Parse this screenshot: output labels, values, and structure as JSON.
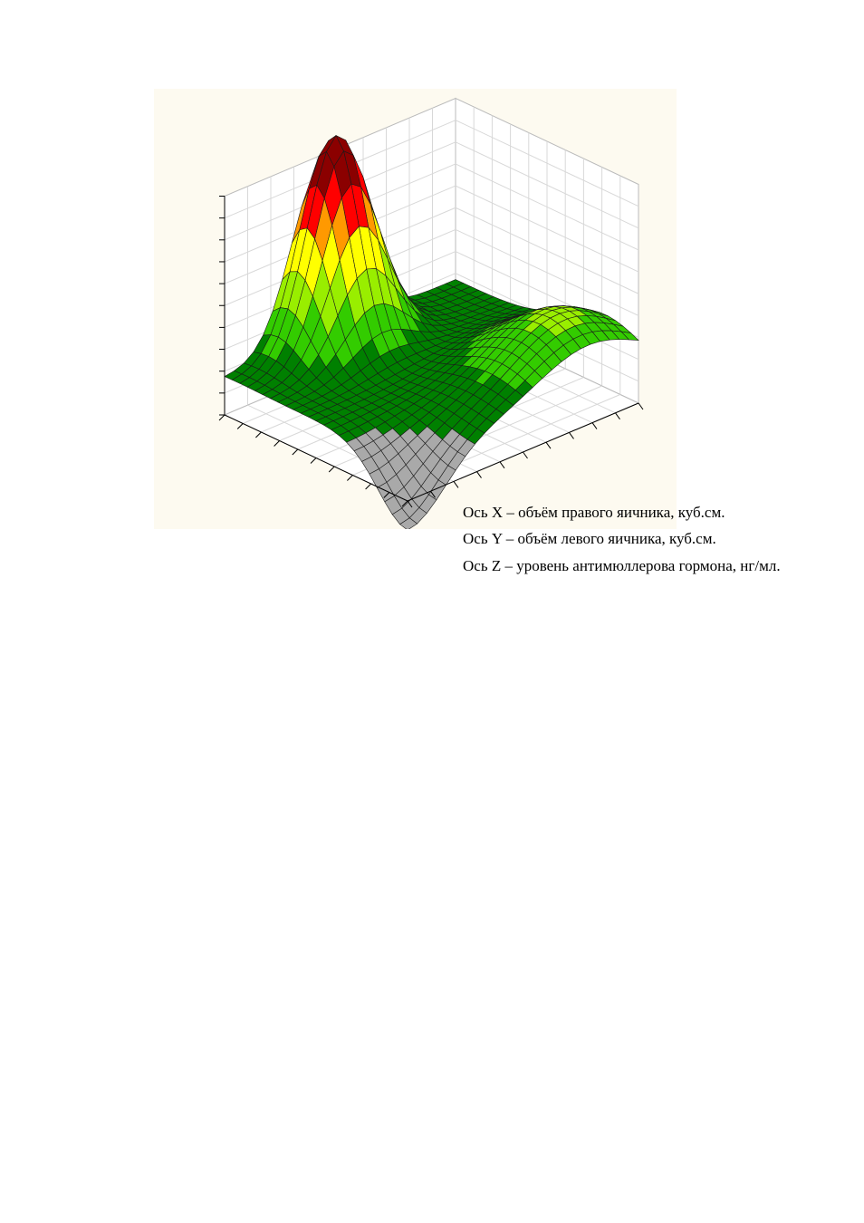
{
  "chart_data": {
    "type": "surface3d",
    "title": "",
    "xlabel": "",
    "ylabel": "",
    "zlabel": "",
    "background_color": "#fdfaf0",
    "grid": true,
    "colormap": [
      "#a9a9a9",
      "#008000",
      "#33cc00",
      "#99ee00",
      "#ffff00",
      "#ff9900",
      "#ff0000",
      "#8b0000"
    ],
    "grid_resolution": 24,
    "surface_peaks": [
      {
        "kind": "max",
        "x": 0.42,
        "y": 0.92,
        "height": 1.0
      },
      {
        "kind": "ridge",
        "x": 0.78,
        "y": 0.18,
        "height": 0.28
      },
      {
        "kind": "min",
        "x": 0.0,
        "y": 0.0,
        "height": -0.32
      }
    ]
  },
  "captions": {
    "x_axis": "Ось X – объём правого яичника, куб.см.",
    "y_axis": "Ось Y – объём левого яичника, куб.см.",
    "z_axis": "Ось Z – уровень антимюллерова гормона, нг/мл."
  }
}
